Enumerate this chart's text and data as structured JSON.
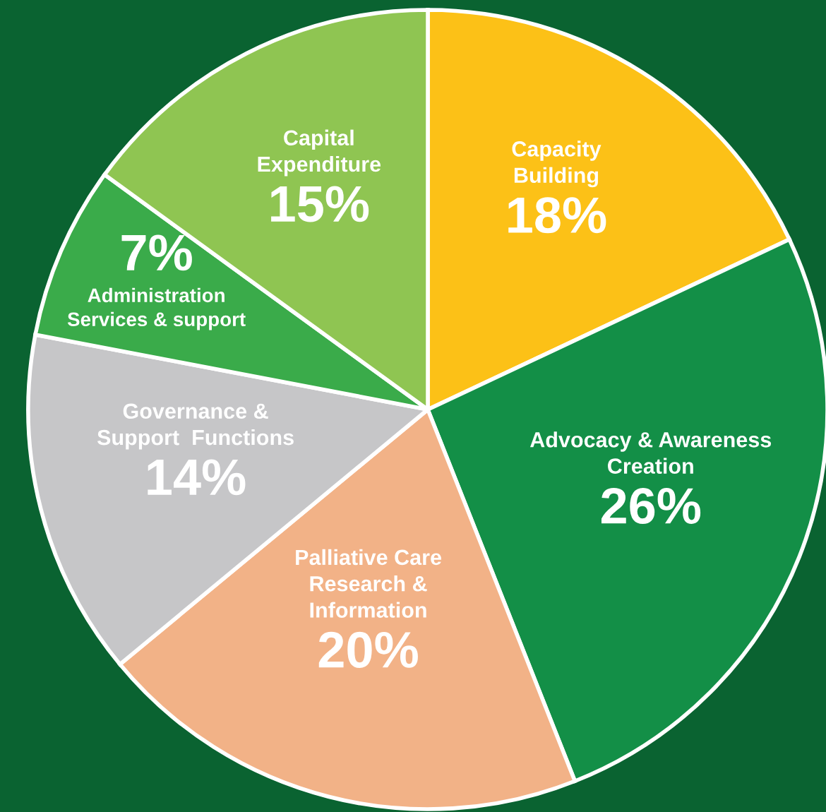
{
  "chart_data": {
    "type": "pie",
    "categories": [
      "Capacity\nBuilding",
      "Advocacy & Awareness\nCreation",
      "Palliative Care\nResearch &\nInformation",
      "Governance &\nSupport  Functions",
      "Administration\nServices & support",
      "Capital\nExpenditure"
    ],
    "values": [
      18,
      26,
      20,
      14,
      7,
      15
    ],
    "colors": [
      "#fcc117",
      "#138f47",
      "#f2b287",
      "#c6c6c8",
      "#3aab4a",
      "#8fc552"
    ],
    "value_labels": [
      "18%",
      "26%",
      "20%",
      "14%",
      "7%",
      "15%"
    ],
    "legend": false
  }
}
